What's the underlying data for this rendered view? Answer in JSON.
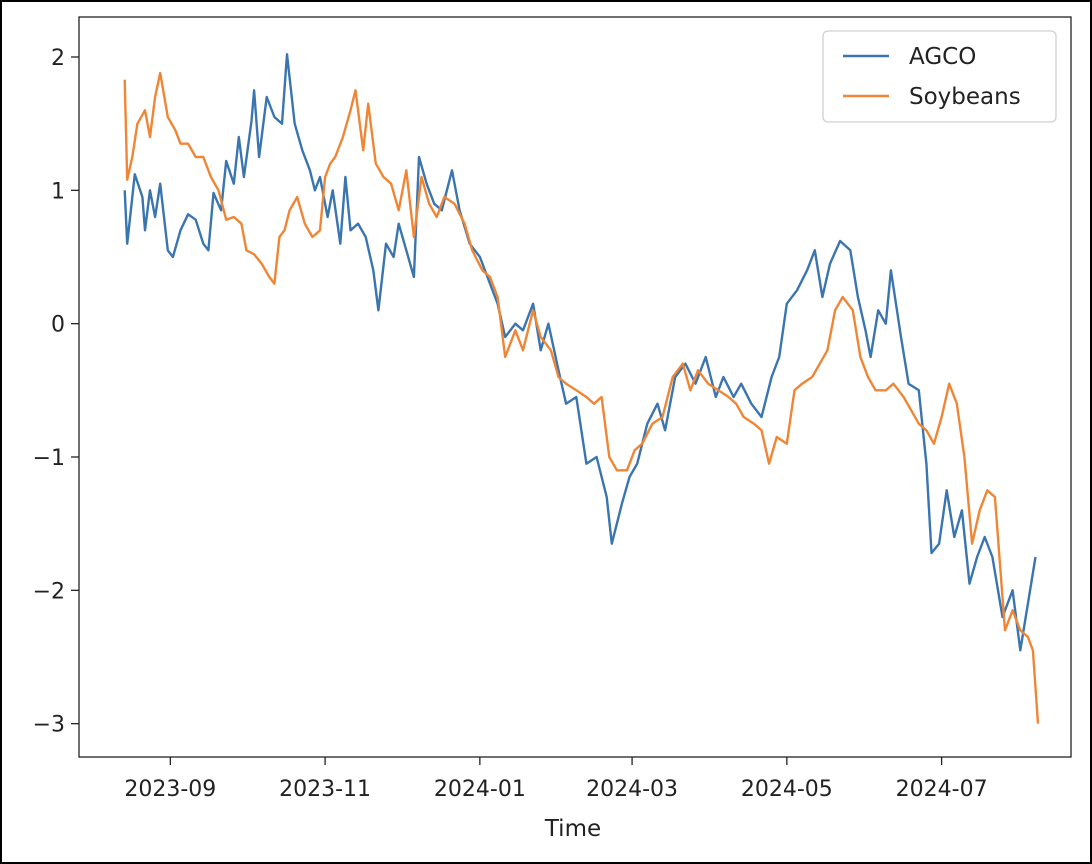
{
  "chart_data": {
    "type": "line",
    "title": "",
    "xlabel": "Time",
    "ylabel": "",
    "xlim": [
      "2023-07-27",
      "2024-08-21"
    ],
    "ylim": [
      -3.25,
      2.3
    ],
    "x_ticks": [
      "2023-09",
      "2023-11",
      "2024-01",
      "2024-03",
      "2024-05",
      "2024-07"
    ],
    "y_ticks": [
      2,
      1,
      0,
      -1,
      -2,
      -3
    ],
    "y_tick_labels": [
      "2",
      "1",
      "0",
      "−1",
      "−2",
      "−3"
    ],
    "legend": {
      "placement": "upper-right"
    },
    "grid": false,
    "series": [
      {
        "name": "AGCO",
        "color": "#3a75b0",
        "points": [
          [
            "2023-08-14",
            1.0
          ],
          [
            "2023-08-15",
            0.6
          ],
          [
            "2023-08-18",
            1.12
          ],
          [
            "2023-08-21",
            0.95
          ],
          [
            "2023-08-22",
            0.7
          ],
          [
            "2023-08-24",
            1.0
          ],
          [
            "2023-08-26",
            0.8
          ],
          [
            "2023-08-28",
            1.05
          ],
          [
            "2023-08-31",
            0.55
          ],
          [
            "2023-09-02",
            0.5
          ],
          [
            "2023-09-05",
            0.7
          ],
          [
            "2023-09-08",
            0.82
          ],
          [
            "2023-09-11",
            0.78
          ],
          [
            "2023-09-14",
            0.6
          ],
          [
            "2023-09-16",
            0.55
          ],
          [
            "2023-09-18",
            0.98
          ],
          [
            "2023-09-21",
            0.85
          ],
          [
            "2023-09-23",
            1.22
          ],
          [
            "2023-09-26",
            1.05
          ],
          [
            "2023-09-28",
            1.4
          ],
          [
            "2023-09-30",
            1.1
          ],
          [
            "2023-10-03",
            1.52
          ],
          [
            "2023-10-04",
            1.75
          ],
          [
            "2023-10-06",
            1.25
          ],
          [
            "2023-10-09",
            1.7
          ],
          [
            "2023-10-12",
            1.55
          ],
          [
            "2023-10-15",
            1.5
          ],
          [
            "2023-10-17",
            2.02
          ],
          [
            "2023-10-20",
            1.5
          ],
          [
            "2023-10-23",
            1.3
          ],
          [
            "2023-10-26",
            1.15
          ],
          [
            "2023-10-28",
            1.0
          ],
          [
            "2023-10-30",
            1.1
          ],
          [
            "2023-11-02",
            0.8
          ],
          [
            "2023-11-04",
            1.0
          ],
          [
            "2023-11-07",
            0.6
          ],
          [
            "2023-11-09",
            1.1
          ],
          [
            "2023-11-11",
            0.7
          ],
          [
            "2023-11-14",
            0.75
          ],
          [
            "2023-11-17",
            0.65
          ],
          [
            "2023-11-20",
            0.4
          ],
          [
            "2023-11-22",
            0.1
          ],
          [
            "2023-11-25",
            0.6
          ],
          [
            "2023-11-28",
            0.5
          ],
          [
            "2023-11-30",
            0.75
          ],
          [
            "2023-12-03",
            0.55
          ],
          [
            "2023-12-06",
            0.35
          ],
          [
            "2023-12-08",
            1.25
          ],
          [
            "2023-12-11",
            1.05
          ],
          [
            "2023-12-14",
            0.9
          ],
          [
            "2023-12-17",
            0.85
          ],
          [
            "2023-12-21",
            1.15
          ],
          [
            "2023-12-24",
            0.85
          ],
          [
            "2023-12-28",
            0.6
          ],
          [
            "2024-01-01",
            0.5
          ],
          [
            "2024-01-05",
            0.3
          ],
          [
            "2024-01-08",
            0.15
          ],
          [
            "2024-01-11",
            -0.1
          ],
          [
            "2024-01-15",
            0.0
          ],
          [
            "2024-01-18",
            -0.05
          ],
          [
            "2024-01-22",
            0.15
          ],
          [
            "2024-01-25",
            -0.2
          ],
          [
            "2024-01-28",
            0.0
          ],
          [
            "2024-02-01",
            -0.35
          ],
          [
            "2024-02-04",
            -0.6
          ],
          [
            "2024-02-08",
            -0.55
          ],
          [
            "2024-02-12",
            -1.05
          ],
          [
            "2024-02-16",
            -1.0
          ],
          [
            "2024-02-20",
            -1.3
          ],
          [
            "2024-02-22",
            -1.65
          ],
          [
            "2024-02-26",
            -1.35
          ],
          [
            "2024-02-29",
            -1.15
          ],
          [
            "2024-03-03",
            -1.05
          ],
          [
            "2024-03-07",
            -0.75
          ],
          [
            "2024-03-11",
            -0.6
          ],
          [
            "2024-03-14",
            -0.8
          ],
          [
            "2024-03-18",
            -0.4
          ],
          [
            "2024-03-22",
            -0.3
          ],
          [
            "2024-03-26",
            -0.45
          ],
          [
            "2024-03-30",
            -0.25
          ],
          [
            "2024-04-03",
            -0.55
          ],
          [
            "2024-04-06",
            -0.4
          ],
          [
            "2024-04-10",
            -0.55
          ],
          [
            "2024-04-13",
            -0.45
          ],
          [
            "2024-04-17",
            -0.6
          ],
          [
            "2024-04-21",
            -0.7
          ],
          [
            "2024-04-25",
            -0.4
          ],
          [
            "2024-04-28",
            -0.25
          ],
          [
            "2024-05-01",
            0.15
          ],
          [
            "2024-05-05",
            0.25
          ],
          [
            "2024-05-09",
            0.4
          ],
          [
            "2024-05-12",
            0.55
          ],
          [
            "2024-05-15",
            0.2
          ],
          [
            "2024-05-18",
            0.45
          ],
          [
            "2024-05-22",
            0.62
          ],
          [
            "2024-05-26",
            0.55
          ],
          [
            "2024-05-29",
            0.2
          ],
          [
            "2024-06-01",
            -0.05
          ],
          [
            "2024-06-03",
            -0.25
          ],
          [
            "2024-06-06",
            0.1
          ],
          [
            "2024-06-09",
            0.0
          ],
          [
            "2024-06-11",
            0.4
          ],
          [
            "2024-06-15",
            -0.1
          ],
          [
            "2024-06-18",
            -0.45
          ],
          [
            "2024-06-22",
            -0.5
          ],
          [
            "2024-06-25",
            -1.05
          ],
          [
            "2024-06-27",
            -1.72
          ],
          [
            "2024-06-30",
            -1.65
          ],
          [
            "2024-07-03",
            -1.25
          ],
          [
            "2024-07-06",
            -1.6
          ],
          [
            "2024-07-09",
            -1.4
          ],
          [
            "2024-07-12",
            -1.95
          ],
          [
            "2024-07-15",
            -1.75
          ],
          [
            "2024-07-18",
            -1.6
          ],
          [
            "2024-07-21",
            -1.75
          ],
          [
            "2024-07-25",
            -2.2
          ],
          [
            "2024-07-29",
            -2.0
          ],
          [
            "2024-08-01",
            -2.45
          ],
          [
            "2024-08-04",
            -2.1
          ],
          [
            "2024-08-07",
            -1.75
          ]
        ]
      },
      {
        "name": "Soybeans",
        "color": "#ef8636",
        "points": [
          [
            "2023-08-14",
            1.83
          ],
          [
            "2023-08-15",
            1.08
          ],
          [
            "2023-08-17",
            1.25
          ],
          [
            "2023-08-19",
            1.5
          ],
          [
            "2023-08-22",
            1.6
          ],
          [
            "2023-08-24",
            1.4
          ],
          [
            "2023-08-26",
            1.7
          ],
          [
            "2023-08-28",
            1.88
          ],
          [
            "2023-08-31",
            1.55
          ],
          [
            "2023-09-03",
            1.45
          ],
          [
            "2023-09-05",
            1.35
          ],
          [
            "2023-09-08",
            1.35
          ],
          [
            "2023-09-11",
            1.25
          ],
          [
            "2023-09-14",
            1.25
          ],
          [
            "2023-09-17",
            1.1
          ],
          [
            "2023-09-20",
            1.0
          ],
          [
            "2023-09-23",
            0.78
          ],
          [
            "2023-09-26",
            0.8
          ],
          [
            "2023-09-29",
            0.75
          ],
          [
            "2023-10-01",
            0.55
          ],
          [
            "2023-10-04",
            0.52
          ],
          [
            "2023-10-07",
            0.45
          ],
          [
            "2023-10-10",
            0.35
          ],
          [
            "2023-10-12",
            0.3
          ],
          [
            "2023-10-14",
            0.65
          ],
          [
            "2023-10-16",
            0.7
          ],
          [
            "2023-10-18",
            0.85
          ],
          [
            "2023-10-21",
            0.95
          ],
          [
            "2023-10-24",
            0.75
          ],
          [
            "2023-10-27",
            0.65
          ],
          [
            "2023-10-30",
            0.7
          ],
          [
            "2023-11-01",
            1.1
          ],
          [
            "2023-11-03",
            1.2
          ],
          [
            "2023-11-05",
            1.25
          ],
          [
            "2023-11-08",
            1.4
          ],
          [
            "2023-11-11",
            1.6
          ],
          [
            "2023-11-13",
            1.75
          ],
          [
            "2023-11-16",
            1.3
          ],
          [
            "2023-11-18",
            1.65
          ],
          [
            "2023-11-21",
            1.2
          ],
          [
            "2023-11-24",
            1.1
          ],
          [
            "2023-11-27",
            1.05
          ],
          [
            "2023-11-30",
            0.85
          ],
          [
            "2023-12-03",
            1.15
          ],
          [
            "2023-12-06",
            0.65
          ],
          [
            "2023-12-09",
            1.1
          ],
          [
            "2023-12-12",
            0.9
          ],
          [
            "2023-12-15",
            0.8
          ],
          [
            "2023-12-18",
            0.95
          ],
          [
            "2023-12-22",
            0.9
          ],
          [
            "2023-12-26",
            0.75
          ],
          [
            "2023-12-29",
            0.55
          ],
          [
            "2024-01-02",
            0.4
          ],
          [
            "2024-01-05",
            0.35
          ],
          [
            "2024-01-08",
            0.2
          ],
          [
            "2024-01-11",
            -0.25
          ],
          [
            "2024-01-15",
            -0.05
          ],
          [
            "2024-01-18",
            -0.2
          ],
          [
            "2024-01-22",
            0.1
          ],
          [
            "2024-01-25",
            -0.1
          ],
          [
            "2024-01-29",
            -0.2
          ],
          [
            "2024-02-01",
            -0.4
          ],
          [
            "2024-02-04",
            -0.45
          ],
          [
            "2024-02-08",
            -0.5
          ],
          [
            "2024-02-12",
            -0.55
          ],
          [
            "2024-02-15",
            -0.6
          ],
          [
            "2024-02-18",
            -0.55
          ],
          [
            "2024-02-21",
            -1.0
          ],
          [
            "2024-02-24",
            -1.1
          ],
          [
            "2024-02-28",
            -1.1
          ],
          [
            "2024-03-02",
            -0.95
          ],
          [
            "2024-03-05",
            -0.9
          ],
          [
            "2024-03-09",
            -0.75
          ],
          [
            "2024-03-13",
            -0.7
          ],
          [
            "2024-03-17",
            -0.4
          ],
          [
            "2024-03-21",
            -0.3
          ],
          [
            "2024-03-24",
            -0.5
          ],
          [
            "2024-03-27",
            -0.35
          ],
          [
            "2024-03-31",
            -0.45
          ],
          [
            "2024-04-04",
            -0.5
          ],
          [
            "2024-04-08",
            -0.55
          ],
          [
            "2024-04-11",
            -0.6
          ],
          [
            "2024-04-14",
            -0.7
          ],
          [
            "2024-04-18",
            -0.75
          ],
          [
            "2024-04-21",
            -0.8
          ],
          [
            "2024-04-24",
            -1.05
          ],
          [
            "2024-04-27",
            -0.85
          ],
          [
            "2024-05-01",
            -0.9
          ],
          [
            "2024-05-04",
            -0.5
          ],
          [
            "2024-05-07",
            -0.45
          ],
          [
            "2024-05-11",
            -0.4
          ],
          [
            "2024-05-14",
            -0.3
          ],
          [
            "2024-05-17",
            -0.2
          ],
          [
            "2024-05-20",
            0.1
          ],
          [
            "2024-05-23",
            0.2
          ],
          [
            "2024-05-27",
            0.1
          ],
          [
            "2024-05-30",
            -0.25
          ],
          [
            "2024-06-02",
            -0.4
          ],
          [
            "2024-06-05",
            -0.5
          ],
          [
            "2024-06-09",
            -0.5
          ],
          [
            "2024-06-12",
            -0.45
          ],
          [
            "2024-06-16",
            -0.55
          ],
          [
            "2024-06-19",
            -0.65
          ],
          [
            "2024-06-22",
            -0.75
          ],
          [
            "2024-06-25",
            -0.8
          ],
          [
            "2024-06-28",
            -0.9
          ],
          [
            "2024-07-01",
            -0.7
          ],
          [
            "2024-07-04",
            -0.45
          ],
          [
            "2024-07-07",
            -0.6
          ],
          [
            "2024-07-10",
            -1.0
          ],
          [
            "2024-07-13",
            -1.65
          ],
          [
            "2024-07-16",
            -1.4
          ],
          [
            "2024-07-19",
            -1.25
          ],
          [
            "2024-07-22",
            -1.3
          ],
          [
            "2024-07-26",
            -2.3
          ],
          [
            "2024-07-29",
            -2.15
          ],
          [
            "2024-08-01",
            -2.3
          ],
          [
            "2024-08-04",
            -2.35
          ],
          [
            "2024-08-06",
            -2.45
          ],
          [
            "2024-08-08",
            -3.0
          ]
        ]
      }
    ]
  }
}
